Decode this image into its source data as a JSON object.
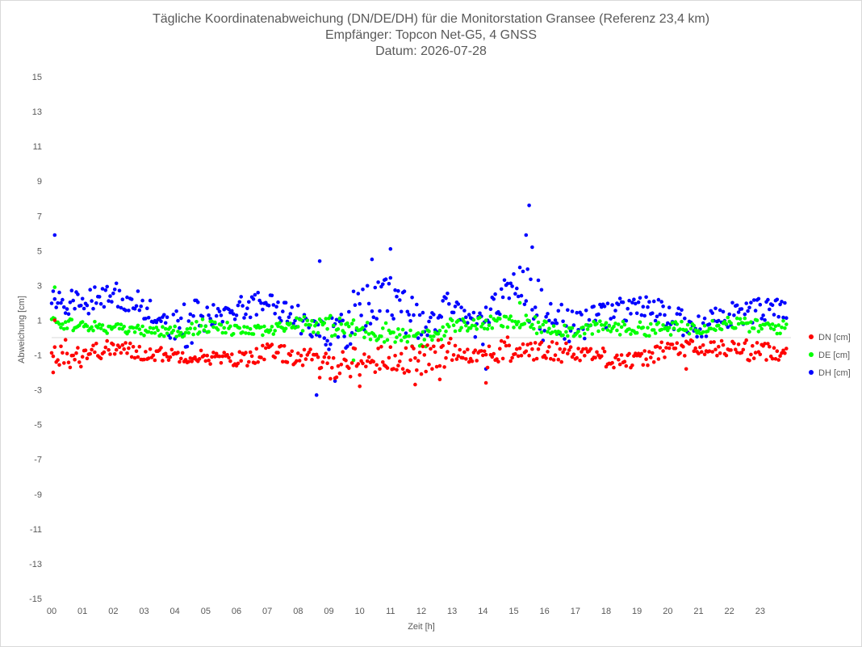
{
  "chart_data": {
    "type": "scatter",
    "title_lines": [
      "Tägliche Koordinatenabweichung (DN/DE/DH) für die Monitorstation Gransee (Referenz 23,4 km)",
      "Empfänger: Topcon Net-G5, 4 GNSS",
      "Datum: 2026-07-28"
    ],
    "xlabel": "Zeit [h]",
    "ylabel": "Abweichung [cm]",
    "xlim": [
      0,
      24
    ],
    "ylim": [
      -15,
      15
    ],
    "x_tick_labels": [
      "00",
      "01",
      "02",
      "03",
      "04",
      "05",
      "06",
      "07",
      "08",
      "09",
      "10",
      "11",
      "12",
      "13",
      "14",
      "15",
      "16",
      "17",
      "18",
      "19",
      "20",
      "21",
      "22",
      "23"
    ],
    "y_ticks": [
      15,
      13,
      11,
      9,
      7,
      5,
      3,
      1,
      -1,
      -3,
      -5,
      -7,
      -9,
      -11,
      -13,
      -15
    ],
    "grid": "horizontal zero line only",
    "legend_position": "right",
    "points_per_hour": 20,
    "series": [
      {
        "name": "DN [cm]",
        "color": "#ff0000",
        "hourly_mean": [
          -0.8,
          -0.9,
          -0.6,
          -0.9,
          -1.0,
          -1.1,
          -1.3,
          -0.8,
          -1.1,
          -1.5,
          -1.4,
          -1.2,
          -1.3,
          -0.8,
          -1.0,
          -0.7,
          -0.8,
          -0.8,
          -1.1,
          -1.4,
          -0.6,
          -0.7,
          -0.6,
          -0.8
        ],
        "hourly_spread": [
          0.9,
          0.5,
          0.5,
          0.4,
          0.4,
          0.4,
          0.5,
          0.5,
          0.6,
          0.9,
          0.8,
          0.8,
          0.9,
          0.5,
          0.8,
          0.6,
          0.6,
          0.5,
          0.6,
          0.5,
          0.6,
          0.5,
          0.6,
          0.5
        ],
        "highlights": [
          [
            0.05,
            -2.0
          ],
          [
            0.1,
            1.0
          ],
          [
            8.7,
            -2.3
          ],
          [
            10.0,
            -2.8
          ],
          [
            11.8,
            -2.7
          ],
          [
            12.6,
            -2.4
          ],
          [
            14.1,
            -2.6
          ],
          [
            20.6,
            -1.8
          ]
        ]
      },
      {
        "name": "DE [cm]",
        "color": "#00ff00",
        "hourly_mean": [
          0.9,
          0.7,
          0.5,
          0.4,
          0.3,
          0.7,
          0.4,
          0.4,
          0.9,
          0.7,
          0.4,
          0.3,
          -0.2,
          0.7,
          0.8,
          0.9,
          0.6,
          0.4,
          0.6,
          0.5,
          0.5,
          0.6,
          0.9,
          0.6
        ],
        "hourly_spread": [
          0.4,
          0.3,
          0.3,
          0.3,
          0.4,
          0.4,
          0.3,
          0.3,
          0.5,
          0.6,
          0.6,
          0.5,
          0.5,
          0.4,
          0.4,
          0.5,
          0.4,
          0.4,
          0.4,
          0.4,
          0.4,
          0.4,
          0.4,
          0.4
        ],
        "highlights": [
          [
            0.1,
            2.9
          ],
          [
            15.2,
            2.0
          ],
          [
            9.8,
            -1.3
          ]
        ]
      },
      {
        "name": "DH [cm]",
        "color": "#0000ff",
        "hourly_mean": [
          2.1,
          2.0,
          2.5,
          1.8,
          0.5,
          1.2,
          1.6,
          2.1,
          1.1,
          0.2,
          1.6,
          2.2,
          0.4,
          1.8,
          0.6,
          3.6,
          1.3,
          0.6,
          1.3,
          1.8,
          1.2,
          0.6,
          1.3,
          1.6
        ],
        "hourly_spread": [
          0.7,
          0.8,
          0.8,
          0.8,
          1.3,
          0.6,
          0.7,
          0.7,
          0.8,
          1.6,
          1.3,
          1.4,
          1.0,
          0.9,
          1.0,
          1.6,
          1.0,
          0.9,
          0.8,
          0.8,
          0.8,
          0.7,
          0.7,
          0.6
        ],
        "highlights": [
          [
            0.1,
            5.9
          ],
          [
            8.7,
            4.4
          ],
          [
            8.6,
            -3.3
          ],
          [
            10.4,
            4.5
          ],
          [
            11.0,
            5.1
          ],
          [
            15.5,
            7.6
          ],
          [
            15.4,
            5.9
          ],
          [
            15.6,
            5.2
          ],
          [
            9.2,
            -2.5
          ],
          [
            14.1,
            -1.8
          ]
        ]
      }
    ]
  }
}
